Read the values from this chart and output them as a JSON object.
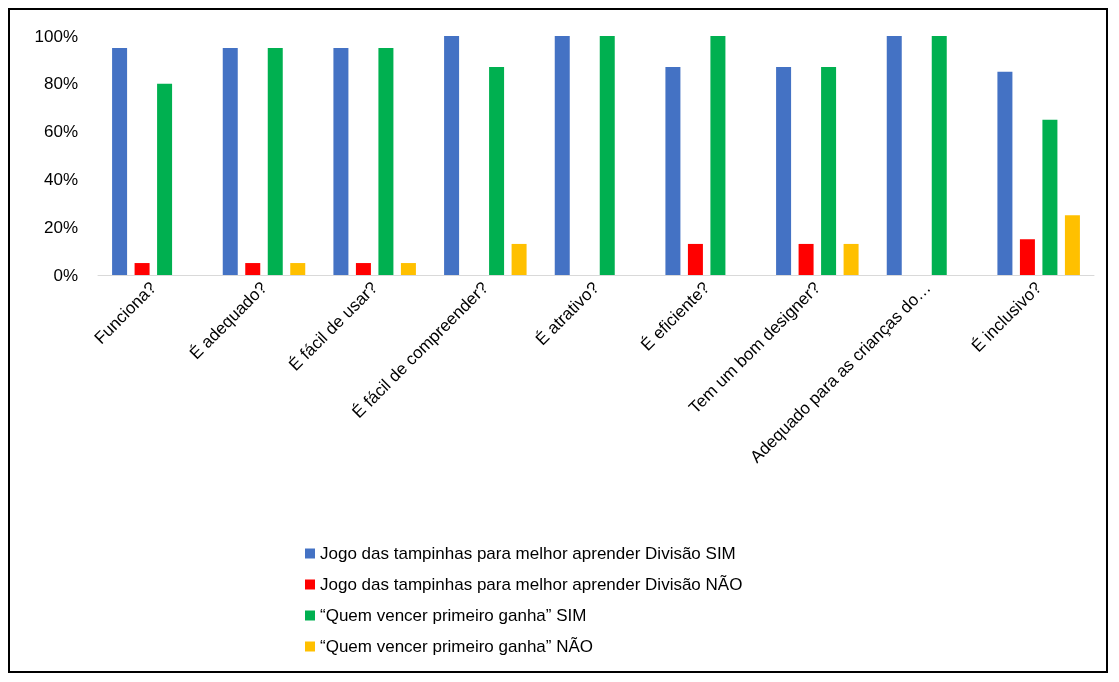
{
  "chart_data": {
    "type": "bar",
    "categories": [
      "Funciona?",
      "É adequado?",
      "É fácil de usar?",
      "É fácil de compreender?",
      "É atrativo?",
      "É eficiente?",
      "Tem um bom designer?",
      "Adequado para as crianças do…",
      "É inclusivo?"
    ],
    "series": [
      {
        "name": "Jogo das tampinhas para melhor aprender Divisão SIM",
        "color": "#4472c4",
        "values": [
          95,
          95,
          95,
          100,
          100,
          87,
          87,
          100,
          85
        ]
      },
      {
        "name": "Jogo das tampinhas para melhor aprender Divisão NÃO",
        "color": "#ff0000",
        "values": [
          5,
          5,
          5,
          0,
          0,
          13,
          13,
          0,
          15
        ]
      },
      {
        "name": "“Quem vencer primeiro ganha” SIM",
        "color": "#00b050",
        "values": [
          80,
          95,
          95,
          87,
          100,
          100,
          87,
          100,
          65
        ]
      },
      {
        "name": "“Quem vencer primeiro ganha” NÃO",
        "color": "#ffc000",
        "values": [
          0,
          5,
          5,
          13,
          0,
          0,
          13,
          0,
          25
        ]
      }
    ],
    "ylim": [
      0,
      100
    ],
    "yticks": [
      {
        "value": 0,
        "label": "0%"
      },
      {
        "value": 20,
        "label": "20%"
      },
      {
        "value": 40,
        "label": "40%"
      },
      {
        "value": 60,
        "label": "60%"
      },
      {
        "value": 80,
        "label": "80%"
      },
      {
        "value": 100,
        "label": "100%"
      }
    ],
    "grid": false,
    "legend": "bottom"
  }
}
